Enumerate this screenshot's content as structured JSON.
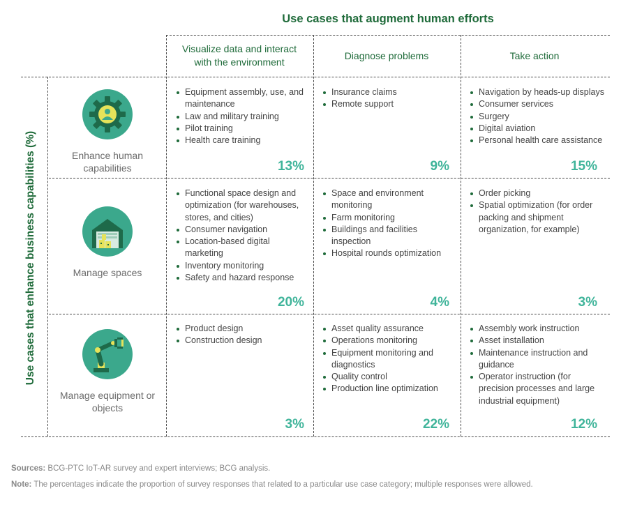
{
  "header": {
    "top_title": "Use cases that augment human efforts",
    "vertical_label": "Use cases that enhance business capabilities (%)"
  },
  "columns": [
    {
      "label": "Visualize data and interact with the environment"
    },
    {
      "label": "Diagnose problems"
    },
    {
      "label": "Take action"
    }
  ],
  "rows": [
    {
      "label": "Enhance human capabilities",
      "icon": "gear-person-icon",
      "cells": [
        {
          "items": [
            "Equipment assembly, use, and maintenance",
            "Law and military training",
            "Pilot training",
            "Health care training"
          ],
          "percent": "13%"
        },
        {
          "items": [
            "Insurance claims",
            "Remote support"
          ],
          "percent": "9%"
        },
        {
          "items": [
            "Navigation by heads-up displays",
            "Consumer services",
            "Surgery",
            "Digital aviation",
            "Personal health care assistance"
          ],
          "percent": "15%"
        }
      ]
    },
    {
      "label": "Manage spaces",
      "icon": "warehouse-icon",
      "cells": [
        {
          "items": [
            "Functional space design and optimization (for warehouses, stores, and cities)",
            "Consumer navigation",
            "Location-based digital marketing",
            "Inventory monitoring",
            "Safety and hazard response"
          ],
          "percent": "20%"
        },
        {
          "items": [
            "Space and environment monitoring",
            "Farm monitoring",
            "Buildings and facilities inspection",
            "Hospital rounds optimization"
          ],
          "percent": "4%"
        },
        {
          "items": [
            "Order picking",
            "Spatial optimization (for order packing and shipment organization, for example)"
          ],
          "percent": "3%"
        }
      ]
    },
    {
      "label": "Manage equipment or objects",
      "icon": "robot-arm-icon",
      "cells": [
        {
          "items": [
            "Product design",
            "Construction design"
          ],
          "percent": "3%"
        },
        {
          "items": [
            "Asset quality assurance",
            "Operations monitoring",
            "Equipment monitoring and diagnostics",
            "Quality control",
            "Production line optimization"
          ],
          "percent": "22%"
        },
        {
          "items": [
            "Assembly work instruction",
            "Asset installation",
            "Maintenance instruction and guidance",
            "Operator instruction (for precision processes and large industrial equipment)"
          ],
          "percent": "12%"
        }
      ]
    }
  ],
  "footer": {
    "sources_label": "Sources:",
    "sources_text": " BCG-PTC IoT-AR survey and expert interviews; BCG analysis.",
    "note_label": "Note:",
    "note_text": " The percentages indicate the proportion of survey responses that related to a particular use case category; multiple responses were allowed."
  },
  "colors": {
    "title_green": "#1f6b3a",
    "accent_teal": "#3fb49a",
    "icon_bg": "#3ba88c",
    "icon_yellow": "#e6e35a",
    "icon_dark": "#1e6a4a"
  }
}
